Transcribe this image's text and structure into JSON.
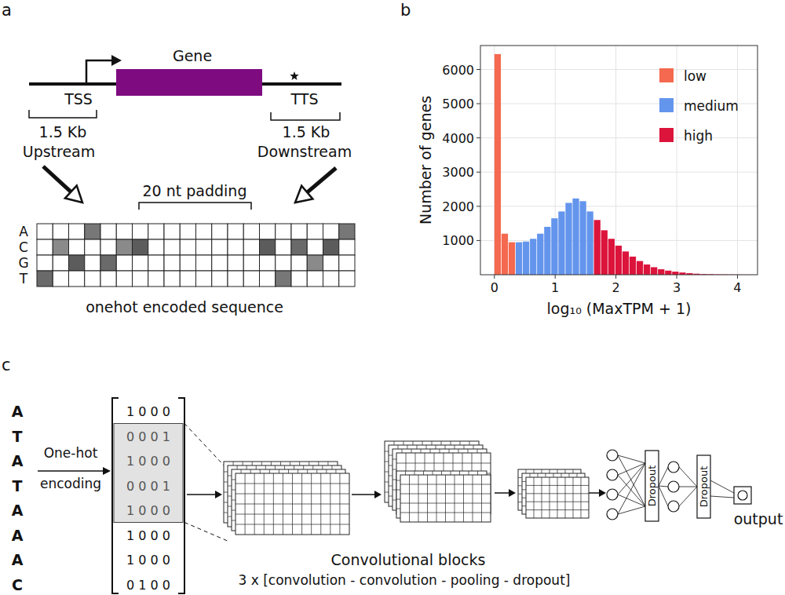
{
  "panel_labels": [
    "a",
    "b",
    "c"
  ],
  "panel_a": {
    "gene_label": "Gene",
    "tss_label": "TSS",
    "tts_label": "TTS",
    "upstream": {
      "length": "1.5 Kb",
      "label": "Upstream"
    },
    "downstream": {
      "length": "1.5 Kb",
      "label": "Downstream"
    },
    "padding_label": "20 nt padding",
    "onehot_rows": [
      "A",
      "C",
      "G",
      "T"
    ],
    "caption": "onehot encoded sequence"
  },
  "chart_data": {
    "type": "histogram",
    "xlabel": "log₁₀ (MaxTPM + 1)",
    "ylabel": "Number of genes",
    "series": [
      {
        "name": "low",
        "color": "#f4694f",
        "bins": [
          0,
          0.117,
          0.234,
          0.351
        ],
        "values": [
          6450,
          1200,
          950
        ]
      },
      {
        "name": "medium",
        "color": "#6495ed",
        "bins": [
          0.351,
          0.468,
          0.585,
          0.702,
          0.819,
          0.936,
          1.053,
          1.17,
          1.287,
          1.404,
          1.521,
          1.638
        ],
        "values": [
          950,
          970,
          1050,
          1200,
          1400,
          1650,
          1850,
          2100,
          2230,
          2150,
          1850
        ]
      },
      {
        "name": "high",
        "color": "#dc143c",
        "bins": [
          1.638,
          1.755,
          1.872,
          1.989,
          2.106,
          2.223,
          2.34,
          2.457,
          2.574,
          2.691,
          2.808,
          2.925,
          3.042,
          3.159,
          3.276,
          3.393,
          3.51,
          3.627,
          3.744,
          3.861,
          3.978,
          4.095,
          4.212,
          4.329
        ],
        "values": [
          1600,
          1300,
          1050,
          850,
          680,
          530,
          400,
          300,
          220,
          160,
          120,
          90,
          65,
          45,
          30,
          20,
          15,
          10,
          8,
          6,
          4,
          3,
          2
        ]
      }
    ],
    "xlim": [
      -0.23,
      4.33
    ],
    "ylim": [
      0,
      6700
    ],
    "xticks": [
      0,
      1,
      2,
      3,
      4
    ],
    "yticks": [
      1000,
      2000,
      3000,
      4000,
      5000,
      6000
    ],
    "grid": true,
    "legend": "upper right"
  },
  "panel_c": {
    "sequence": [
      "A",
      "T",
      "A",
      "T",
      "A",
      "A",
      "A",
      "C"
    ],
    "onehot": [
      "1 0 0 0",
      "0 0 0 1",
      "1 0 0 0",
      "0 0 0 1",
      "1 0 0 0",
      "1 0 0 0",
      "1 0 0 0",
      "0 1 0 0"
    ],
    "encoding_label": [
      "One-hot",
      "encoding"
    ],
    "dropout_labels": [
      "Dropout",
      "Dropout"
    ],
    "output_label": "output",
    "blocks_title": "Convolutional blocks",
    "blocks_detail": "3 x [convolution - convolution - pooling - dropout]"
  }
}
